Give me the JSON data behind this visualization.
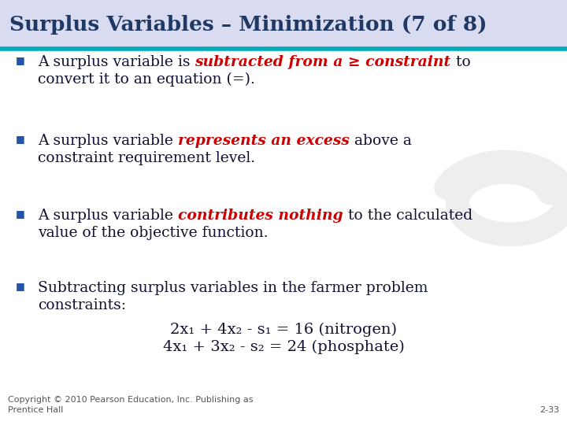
{
  "title": "Surplus Variables – Minimization (7 of 8)",
  "title_color": "#1F3864",
  "header_bg": "#D9DCF0",
  "separator_color": "#00AABB",
  "bg_color": "#FFFFFF",
  "bullet_color": "#2255AA",
  "bullet_char": "■",
  "body_dark": "#111133",
  "red_color": "#CC0000",
  "body_fontsize": 13.5,
  "title_fontsize": 19,
  "bullet_items": [
    {
      "line1_prefix": "A surplus variable is ",
      "line1_red": "subtracted from a ≥ constraint",
      "line1_suffix": " to",
      "line2": "convert it to an equation (=)."
    },
    {
      "line1_prefix": "A surplus variable ",
      "line1_red": "represents an excess",
      "line1_suffix": " above a",
      "line2": "constraint requirement level."
    },
    {
      "line1_prefix": "A surplus variable ",
      "line1_red": "contributes nothing",
      "line1_suffix": " to the calculated",
      "line2": "value of the objective function."
    },
    {
      "line1_prefix": "Subtracting surplus variables in the farmer problem",
      "line1_red": "",
      "line1_suffix": "",
      "line2": "constraints:"
    }
  ],
  "eq1": "2x₁ + 4x₂ - s₁ = 16 (nitrogen)",
  "eq2": "4x₁ + 3x₂ - s₂ = 24 (phosphate)",
  "eq_fontsize": 14,
  "footer_left": "Copyright © 2010 Pearson Education, Inc. Publishing as\nPrentice Hall",
  "footer_right": "2-33",
  "footer_fontsize": 8
}
